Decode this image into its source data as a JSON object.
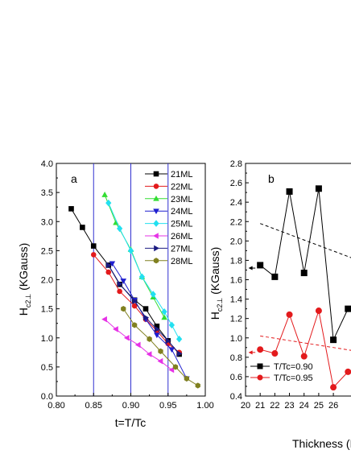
{
  "chart_data": [
    {
      "type": "line",
      "panel_label": "a",
      "xlabel": "t=T/Tc",
      "ylabel_main": "H",
      "ylabel_sub": "c2⊥",
      "ylabel_rest": " (KGauss)",
      "xlim": [
        0.8,
        1.0
      ],
      "ylim": [
        0.0,
        4.0
      ],
      "xticks": [
        "0.80",
        "0.85",
        "0.90",
        "0.95",
        "1.00"
      ],
      "yticks": [
        "0.0",
        "0.5",
        "1.0",
        "1.5",
        "2.0",
        "2.5",
        "3.0",
        "3.5",
        "4.0"
      ],
      "vlines": [
        0.85,
        0.9,
        0.95
      ],
      "vline_color": "#3030d0",
      "legend_position": "top-right",
      "series": [
        {
          "name": "21ML",
          "color": "#000000",
          "marker": "square",
          "x": [
            0.82,
            0.835,
            0.85,
            0.87,
            0.885,
            0.905,
            0.92,
            0.935,
            0.95,
            0.965
          ],
          "y": [
            3.22,
            2.9,
            2.58,
            2.25,
            1.92,
            1.65,
            1.5,
            1.2,
            0.95,
            0.72
          ]
        },
        {
          "name": "22ML",
          "color": "#e31a1c",
          "marker": "circle",
          "x": [
            0.85,
            0.87,
            0.885,
            0.905,
            0.92,
            0.935,
            0.95,
            0.965
          ],
          "y": [
            2.43,
            2.13,
            1.8,
            1.55,
            1.32,
            1.12,
            0.9,
            0.75
          ]
        },
        {
          "name": "23ML",
          "color": "#33dd33",
          "marker": "triangle-up",
          "x": [
            0.865,
            0.88,
            0.9,
            0.915,
            0.93,
            0.945
          ],
          "y": [
            3.46,
            2.98,
            2.52,
            2.05,
            1.7,
            1.35
          ]
        },
        {
          "name": "24ML",
          "color": "#1f1fcf",
          "marker": "triangle-down",
          "x": [
            0.875,
            0.89,
            0.905,
            0.92,
            0.935,
            0.955,
            0.975
          ],
          "y": [
            2.28,
            1.98,
            1.65,
            1.32,
            1.05,
            0.8,
            0.3
          ]
        },
        {
          "name": "25ML",
          "color": "#22e0f0",
          "marker": "diamond",
          "x": [
            0.87,
            0.885,
            0.9,
            0.915,
            0.93,
            0.945,
            0.955,
            0.965
          ],
          "y": [
            3.32,
            2.88,
            2.5,
            2.05,
            1.75,
            1.45,
            1.22,
            0.98
          ]
        },
        {
          "name": "26ML",
          "color": "#e632e6",
          "marker": "triangle-left",
          "x": [
            0.865,
            0.88,
            0.895,
            0.91,
            0.925,
            0.94,
            0.955
          ],
          "y": [
            1.32,
            1.15,
            1.0,
            0.88,
            0.72,
            0.6,
            0.45
          ]
        },
        {
          "name": "27ML",
          "color": "#1a1a80",
          "marker": "triangle-right",
          "x": [
            0.87,
            0.885,
            0.905,
            0.92,
            0.935,
            0.95,
            0.965
          ],
          "y": [
            2.25,
            1.93,
            1.63,
            1.35,
            1.15,
            0.95,
            0.73
          ]
        },
        {
          "name": "28ML",
          "color": "#808020",
          "marker": "hexagon",
          "x": [
            0.89,
            0.905,
            0.925,
            0.94,
            0.96,
            0.975,
            0.99
          ],
          "y": [
            1.5,
            1.22,
            0.98,
            0.77,
            0.5,
            0.3,
            0.18
          ]
        }
      ]
    },
    {
      "type": "line",
      "panel_label": "b",
      "xlabel": "Thickness (M",
      "ylabel_main": "H",
      "ylabel_sub": "c2⊥",
      "ylabel_rest": " (KGauss)",
      "xlim": [
        20,
        27.7
      ],
      "ylim": [
        0.4,
        2.8
      ],
      "xticks": [
        "20",
        "21",
        "22",
        "23",
        "24",
        "25",
        "26"
      ],
      "yticks": [
        "0.4",
        "0.6",
        "0.8",
        "1.0",
        "1.2",
        "1.4",
        "1.6",
        "1.8",
        "2.0",
        "2.2",
        "2.4",
        "2.6",
        "2.8"
      ],
      "legend_position": "bottom-left",
      "series": [
        {
          "name": "T/Tc=0.90",
          "color": "#000000",
          "marker": "square",
          "x": [
            21,
            22,
            23,
            24,
            25,
            26,
            27
          ],
          "y": [
            1.75,
            1.63,
            2.51,
            1.67,
            2.54,
            0.98,
            1.3
          ]
        },
        {
          "name": "T/Tc=0.95",
          "color": "#e31a1c",
          "marker": "circle",
          "x": [
            21,
            22,
            23,
            24,
            25,
            26,
            27
          ],
          "y": [
            0.88,
            0.84,
            1.24,
            0.81,
            1.28,
            0.49,
            0.65
          ]
        }
      ],
      "trend_lines": [
        {
          "color": "#000000",
          "x": [
            21,
            27.7
          ],
          "y": [
            2.18,
            1.8
          ]
        },
        {
          "color": "#e31a1c",
          "x": [
            21,
            27.7
          ],
          "y": [
            1.02,
            0.86
          ]
        }
      ],
      "arrows": [
        {
          "color": "#000000",
          "from_x": 21,
          "to_x": 20.2,
          "y": 1.72
        },
        {
          "color": "#e31a1c",
          "from_x": 21,
          "to_x": 20.2,
          "y": 0.85
        }
      ]
    }
  ]
}
